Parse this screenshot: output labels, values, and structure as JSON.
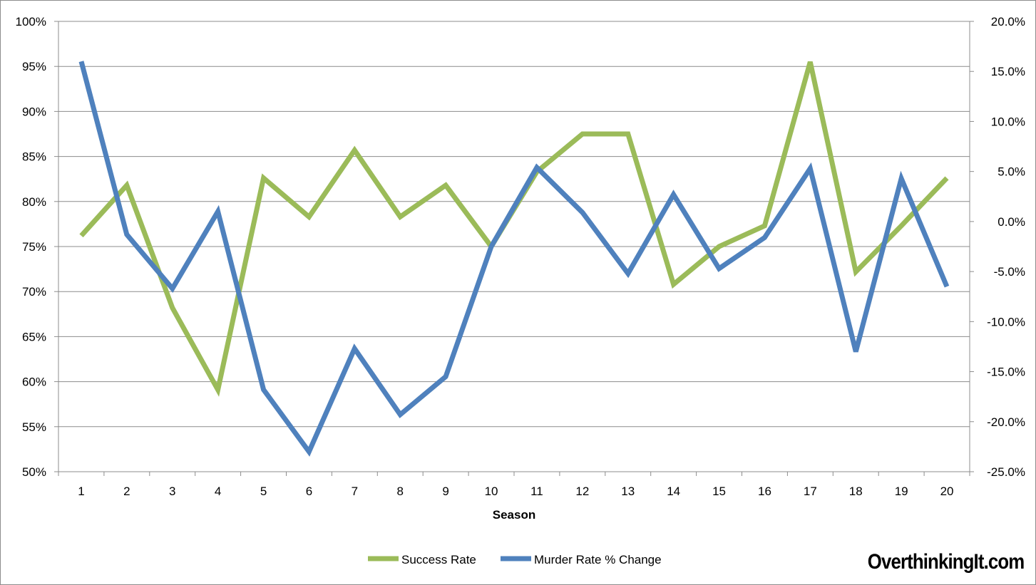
{
  "chart_data": {
    "type": "line",
    "xlabel": "Season",
    "x": [
      "1",
      "2",
      "3",
      "4",
      "5",
      "6",
      "7",
      "8",
      "9",
      "10",
      "11",
      "12",
      "13",
      "14",
      "15",
      "16",
      "17",
      "18",
      "19",
      "20"
    ],
    "y_left": {
      "ticks": [
        "50%",
        "55%",
        "60%",
        "65%",
        "70%",
        "75%",
        "80%",
        "85%",
        "90%",
        "95%",
        "100%"
      ],
      "ylim": [
        50,
        100
      ]
    },
    "y_right": {
      "ticks": [
        "-25.0%",
        "-20.0%",
        "-15.0%",
        "-10.0%",
        "-5.0%",
        "0.0%",
        "5.0%",
        "10.0%",
        "15.0%",
        "20.0%"
      ],
      "ylim": [
        -25,
        20
      ]
    },
    "grid": true,
    "legend_position": "bottom-center",
    "series": [
      {
        "name": "Success Rate",
        "axis": "left",
        "color": "#9bbb59",
        "values": [
          76.2,
          81.8,
          68.2,
          59.1,
          82.6,
          78.3,
          85.7,
          78.3,
          81.8,
          75.0,
          83.3,
          87.5,
          87.5,
          70.8,
          75.0,
          77.3,
          95.5,
          72.2,
          77.3,
          82.6
        ]
      },
      {
        "name": "Murder Rate % Change",
        "axis": "right",
        "color": "#4f81bd",
        "values": [
          16.0,
          -1.3,
          -6.7,
          1.0,
          -16.8,
          -23.0,
          -12.7,
          -19.3,
          -15.5,
          -2.5,
          5.4,
          0.9,
          -5.2,
          2.7,
          -4.7,
          -1.6,
          5.3,
          -13.0,
          4.3,
          -6.5
        ]
      }
    ]
  },
  "watermark": "OverthinkingIt.com"
}
